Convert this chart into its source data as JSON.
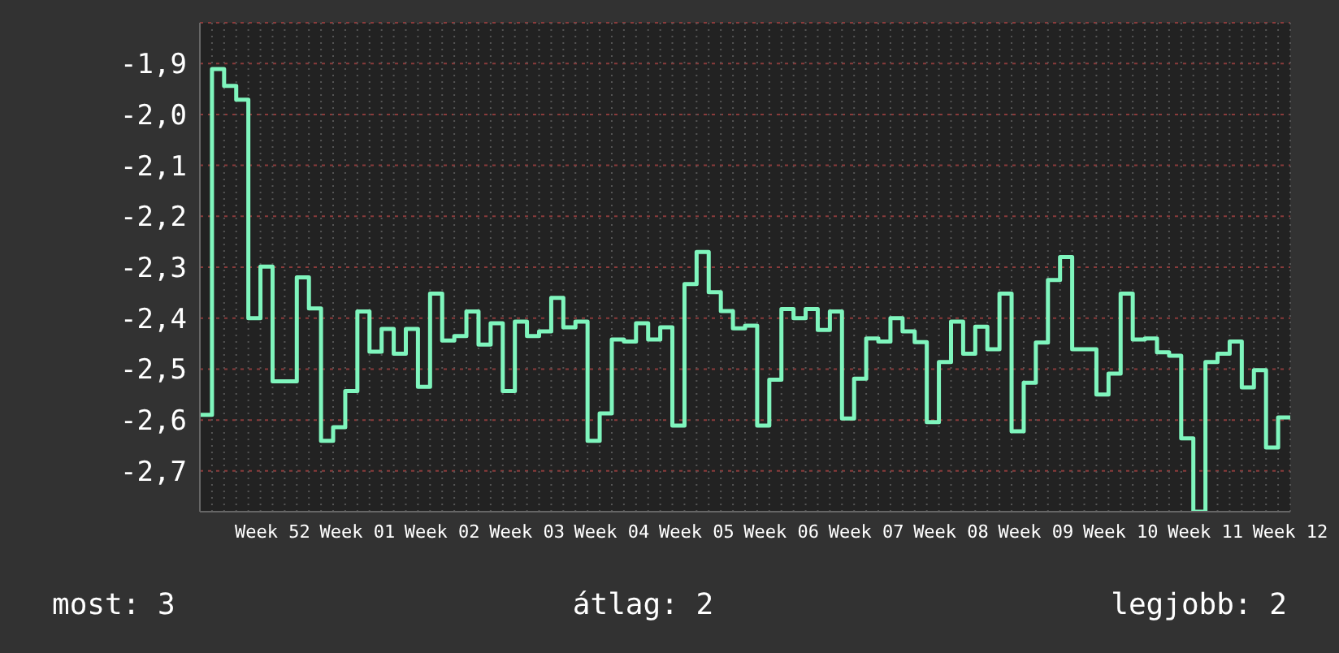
{
  "chart_data": {
    "type": "step",
    "categories": [
      null,
      null,
      null,
      null,
      null,
      null,
      "Week 52",
      null,
      null,
      null,
      null,
      null,
      null,
      "Week 01",
      null,
      null,
      null,
      null,
      null,
      null,
      "Week 02",
      null,
      null,
      null,
      null,
      null,
      null,
      "Week 03",
      null,
      null,
      null,
      null,
      null,
      null,
      "Week 04",
      null,
      null,
      null,
      null,
      null,
      null,
      "Week 05",
      null,
      null,
      null,
      null,
      null,
      null,
      "Week 06",
      null,
      null,
      null,
      null,
      null,
      null,
      "Week 07",
      null,
      null,
      null,
      null,
      null,
      null,
      "Week 08",
      null,
      null,
      null,
      null,
      null,
      null,
      "Week 09",
      null,
      null,
      null,
      null,
      null,
      null,
      "Week 10",
      null,
      null,
      null,
      null,
      null,
      null,
      "Week 11",
      null,
      null,
      null,
      null,
      null,
      null,
      "Week 12"
    ],
    "series": [
      {
        "color": "#7ff5bd",
        "values": [
          -2.59,
          -1.911,
          -1.944,
          -1.971,
          -2.4,
          -2.299,
          -2.524,
          -2.524,
          -2.32,
          -2.381,
          -2.641,
          -2.614,
          -2.543,
          -2.387,
          -2.466,
          -2.421,
          -2.47,
          -2.421,
          -2.535,
          -2.352,
          -2.444,
          -2.435,
          -2.387,
          -2.452,
          -2.41,
          -2.543,
          -2.407,
          -2.435,
          -2.426,
          -2.36,
          -2.418,
          -2.407,
          -2.641,
          -2.587,
          -2.442,
          -2.446,
          -2.41,
          -2.442,
          -2.418,
          -2.611,
          -2.333,
          -2.27,
          -2.349,
          -2.386,
          -2.42,
          -2.415,
          -2.611,
          -2.521,
          -2.382,
          -2.4,
          -2.382,
          -2.423,
          -2.387,
          -2.597,
          -2.519,
          -2.44,
          -2.446,
          -2.4,
          -2.426,
          -2.447,
          -2.604,
          -2.486,
          -2.407,
          -2.47,
          -2.417,
          -2.461,
          -2.352,
          -2.622,
          -2.527,
          -2.448,
          -2.325,
          -2.28,
          -2.461,
          -2.461,
          -2.55,
          -2.509,
          -2.352,
          -2.442,
          -2.44,
          -2.467,
          -2.474,
          -2.636,
          -2.78,
          -2.486,
          -2.47,
          -2.446,
          -2.536,
          -2.502,
          -2.654,
          -2.595,
          -2.595
        ]
      }
    ],
    "ylim": [
      -2.78,
      -1.82
    ],
    "yticks": [
      {
        "value": -2.7,
        "label": "-2,7"
      },
      {
        "value": -2.6,
        "label": "-2,6"
      },
      {
        "value": -2.5,
        "label": "-2,5"
      },
      {
        "value": -2.4,
        "label": "-2,4"
      },
      {
        "value": -2.3,
        "label": "-2,3"
      },
      {
        "value": -2.2,
        "label": "-2,2"
      },
      {
        "value": -2.1,
        "label": "-2,1"
      },
      {
        "value": -2.0,
        "label": "-2,0"
      },
      {
        "value": -1.9,
        "label": "-1,9"
      }
    ],
    "grid": true,
    "annotations": [
      "most: 3",
      "átlag: 2",
      "legjobb: 2"
    ]
  }
}
